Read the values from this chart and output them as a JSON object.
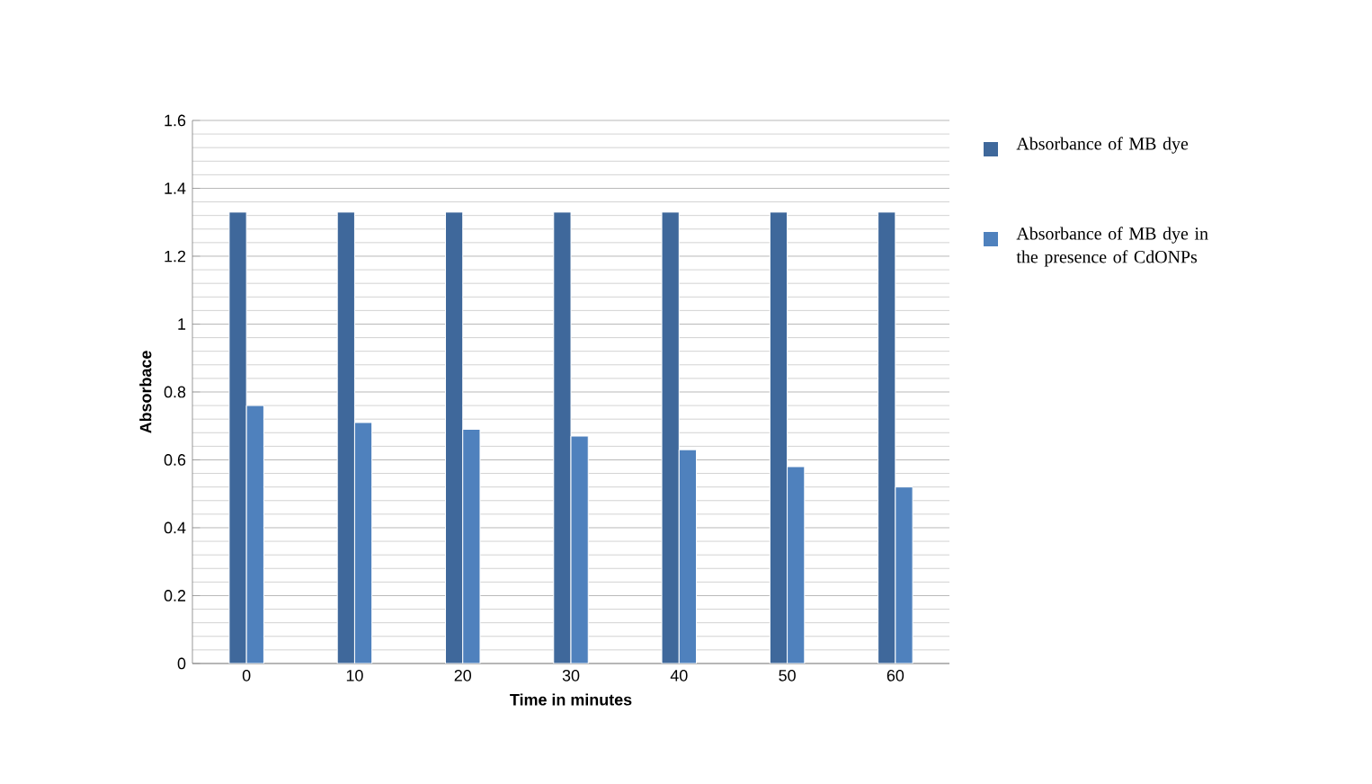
{
  "chart_data": {
    "type": "bar",
    "xlabel": "Time in minutes",
    "ylabel": "Absorbace",
    "categories": [
      "0",
      "10",
      "20",
      "30",
      "40",
      "50",
      "60"
    ],
    "series": [
      {
        "name": "Absorbance of MB dye",
        "color": "#3f689b",
        "values": [
          1.33,
          1.33,
          1.33,
          1.33,
          1.33,
          1.33,
          1.33
        ]
      },
      {
        "name": "Absorbance of MB dye  in the presence of CdONPs",
        "color": "#4f81bd",
        "values": [
          0.76,
          0.71,
          0.69,
          0.67,
          0.63,
          0.58,
          0.52
        ]
      }
    ],
    "ylim": [
      0,
      1.6
    ],
    "yticks": [
      0,
      0.2,
      0.4,
      0.6,
      0.8,
      1,
      1.2,
      1.4,
      1.6
    ],
    "grid": "y",
    "legend": "right"
  }
}
